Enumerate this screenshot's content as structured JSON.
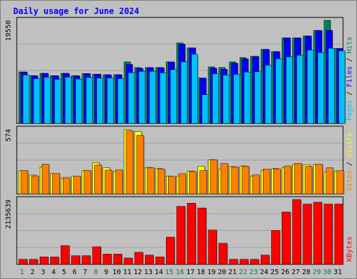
{
  "window": {
    "background": "#c0c0c0"
  },
  "chart_data": {
    "type": "bar",
    "title": "Daily usage for June 2024",
    "categories": [
      "1",
      "2",
      "3",
      "4",
      "5",
      "6",
      "7",
      "8",
      "9",
      "10",
      "11",
      "12",
      "13",
      "14",
      "15",
      "16",
      "17",
      "18",
      "19",
      "20",
      "21",
      "22",
      "23",
      "24",
      "25",
      "26",
      "27",
      "28",
      "29",
      "30",
      "31"
    ],
    "weekend_days": [
      1,
      8,
      15,
      16,
      22,
      23,
      29,
      30
    ],
    "colors": {
      "hits": "#00805c",
      "files": "#0000ff",
      "pages": "#00c0ff",
      "visits": "#ffff00",
      "sites": "#ff8000",
      "kbytes": "#ff0000",
      "title": "#0000ff",
      "weekend_label": "#00805c",
      "weekday_label": "#000000"
    },
    "panels": [
      {
        "id": "traffic",
        "max_label": "19550",
        "ylim": [
          0,
          19550
        ],
        "side_labels": [
          {
            "text": "Pages",
            "color": "#00c0ff"
          },
          {
            "text": " / ",
            "color": "#000000"
          },
          {
            "text": "Files",
            "color": "#0000ff"
          },
          {
            "text": " / ",
            "color": "#000000"
          },
          {
            "text": "Hits",
            "color": "#00805c"
          }
        ],
        "series": [
          {
            "name": "Hits",
            "color": "#00805c",
            "values": [
              9760,
              9050,
              9500,
              9050,
              9500,
              9050,
              9450,
              9350,
              9240,
              9240,
              11660,
              10590,
              10590,
              10590,
              11660,
              15260,
              14310,
              8620,
              10720,
              10610,
              11660,
              12490,
              12720,
              14040,
              13610,
              16220,
              16220,
              16570,
              17620,
              19550,
              14200
            ]
          },
          {
            "name": "Files",
            "color": "#0000ff",
            "values": [
              9760,
              9050,
              9500,
              9050,
              9500,
              9050,
              9450,
              9350,
              9240,
              9240,
              11180,
              10440,
              10590,
              10590,
              11660,
              15010,
              14310,
              8620,
              10480,
              10260,
              11420,
              12250,
              12720,
              14040,
              13610,
              16220,
              16220,
              16570,
              17620,
              17640,
              14200
            ]
          },
          {
            "name": "Pages",
            "color": "#00c0ff",
            "values": [
              9180,
              8470,
              8730,
              8350,
              8780,
              8420,
              8710,
              8580,
              8590,
              8480,
              9620,
              9860,
              9870,
              9590,
              10210,
              11680,
              13100,
              5470,
              9440,
              9180,
              9310,
              9740,
              9800,
              11030,
              12260,
              12610,
              12920,
              13880,
              13420,
              14240,
              13750
            ]
          }
        ]
      },
      {
        "id": "visitors",
        "max_label": "574",
        "ylim": [
          0,
          574
        ],
        "side_labels": [
          {
            "text": "Sites",
            "color": "#ff8000"
          },
          {
            "text": " / ",
            "color": "#000000"
          },
          {
            "text": "Visits",
            "color": "#ffff00"
          }
        ],
        "series": [
          {
            "name": "Visits",
            "color": "#ffff00",
            "values": [
              205,
              167,
              239,
              179,
              140,
              155,
              206,
              275,
              231,
              197,
              568,
              552,
              234,
              225,
              157,
              158,
              203,
              245,
              303,
              220,
              241,
              247,
              158,
              208,
              225,
              233,
              260,
              258,
              261,
              192,
              202
            ]
          },
          {
            "name": "Sites",
            "color": "#ff8000",
            "values": [
              207,
              160,
              262,
              181,
              142,
              157,
              208,
              255,
              210,
              212,
              558,
              518,
              231,
              221,
              155,
              179,
              198,
              209,
              302,
              269,
              239,
              244,
              168,
              220,
              222,
              247,
              270,
              242,
              262,
              230,
              205
            ]
          }
        ]
      },
      {
        "id": "volume",
        "max_label": "2135639",
        "ylim": [
          0,
          2135639
        ],
        "side_labels": [
          {
            "text": "KBytes",
            "color": "#ff0000"
          }
        ],
        "series": [
          {
            "name": "KBytes",
            "color": "#ff0000",
            "values": [
              166000,
              166000,
              245000,
              245000,
              619000,
              286000,
              286000,
              578000,
              338000,
              338000,
              208000,
              397000,
              305000,
              245000,
              896000,
              1910000,
              2014000,
              1857000,
              1130000,
              694000,
              166000,
              166000,
              166000,
              307000,
              1117000,
              1724000,
              2135639,
              1985000,
              2045000,
              1985000,
              1985000
            ]
          }
        ]
      }
    ]
  }
}
